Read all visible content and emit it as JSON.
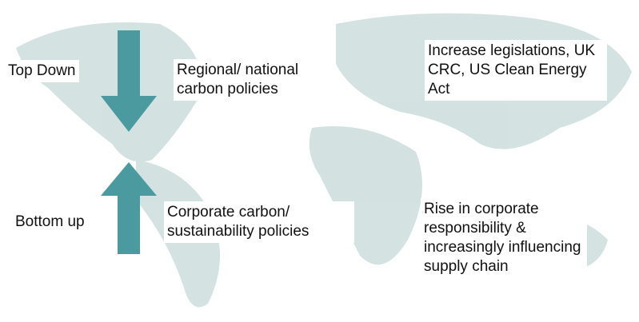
{
  "labels": {
    "top_down": "Top Down",
    "bottom_up": "Bottom up",
    "regional": "Regional/ national carbon policies",
    "corporate": "Corporate carbon/ sustainability policies",
    "legislation": "Increase legislations, UK CRC, US Clean Energy Act",
    "responsibility": "Rise in corporate responsibility & increasingly influencing supply chain"
  }
}
